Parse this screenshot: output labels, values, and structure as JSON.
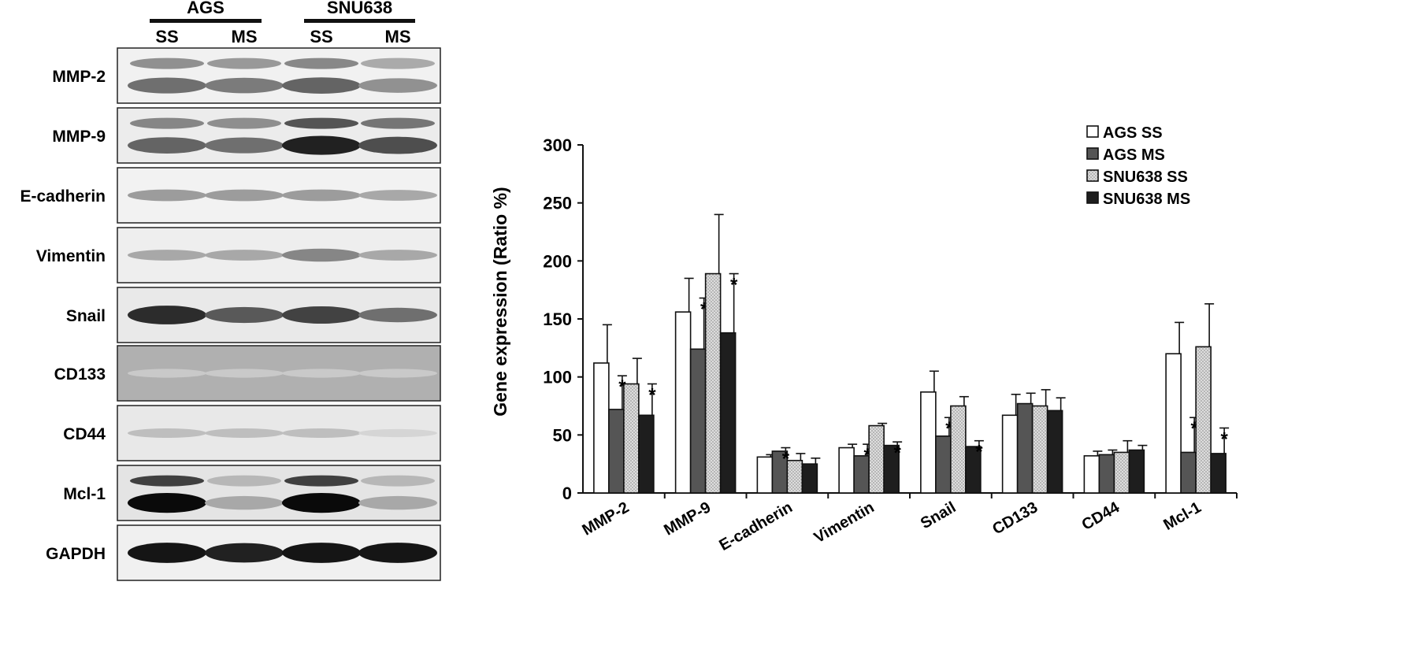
{
  "blot": {
    "groups": [
      {
        "label": "AGS",
        "lanes": [
          "SS",
          "MS"
        ]
      },
      {
        "label": "SNU638",
        "lanes": [
          "SS",
          "MS"
        ]
      }
    ],
    "rows": [
      {
        "label": "MMP-2",
        "bands": [
          0.55,
          0.5,
          0.6,
          0.4
        ],
        "background": "#f1f1f1",
        "double": true
      },
      {
        "label": "MMP-9",
        "bands": [
          0.6,
          0.55,
          0.9,
          0.7
        ],
        "background": "#ececec",
        "double": true
      },
      {
        "label": "E-cadherin",
        "bands": [
          0.35,
          0.35,
          0.35,
          0.3
        ],
        "background": "#f2f2f2",
        "double": false
      },
      {
        "label": "Vimentin",
        "bands": [
          0.3,
          0.3,
          0.45,
          0.3
        ],
        "background": "#eeeeee",
        "double": false
      },
      {
        "label": "Snail",
        "bands": [
          0.85,
          0.65,
          0.75,
          0.55
        ],
        "background": "#e9e9e9",
        "double": false
      },
      {
        "label": "CD133",
        "bands": [
          0.15,
          0.15,
          0.15,
          0.15
        ],
        "background": "#b0b0b0",
        "double": false
      },
      {
        "label": "CD44",
        "bands": [
          0.2,
          0.2,
          0.2,
          0.1
        ],
        "background": "#e8e8e8",
        "double": false
      },
      {
        "label": "Mcl-1",
        "bands": [
          1.0,
          0.3,
          1.0,
          0.3
        ],
        "background": "#e4e4e4",
        "double": true
      },
      {
        "label": "GAPDH",
        "bands": [
          0.95,
          0.9,
          0.95,
          0.95
        ],
        "background": "#f0f0f0",
        "double": false
      }
    ]
  },
  "chart_data": {
    "type": "bar",
    "ylabel": "Gene expression (Ratio %)",
    "xlabel": "",
    "ylim": [
      0,
      300
    ],
    "yticks": [
      0,
      50,
      100,
      150,
      200,
      250,
      300
    ],
    "categories": [
      "MMP-2",
      "MMP-9",
      "E-cadherin",
      "Vimentin",
      "Snail",
      "CD133",
      "CD44",
      "Mcl-1"
    ],
    "series": [
      {
        "name": "AGS SS",
        "color": "#ffffff",
        "values": [
          112,
          156,
          31,
          39,
          87,
          67,
          32,
          120
        ],
        "errors": [
          33,
          29,
          2,
          3,
          18,
          18,
          4,
          27
        ],
        "significant": [
          false,
          false,
          false,
          false,
          false,
          false,
          false,
          false
        ]
      },
      {
        "name": "AGS MS",
        "color": "#555555",
        "values": [
          72,
          124,
          36,
          32,
          49,
          77,
          33,
          35
        ],
        "errors": [
          29,
          44,
          3,
          10,
          16,
          9,
          4,
          30
        ],
        "significant": [
          true,
          true,
          true,
          true,
          true,
          false,
          false,
          true
        ]
      },
      {
        "name": "SNU638 SS",
        "color": "#dddddd",
        "values": [
          94,
          189,
          28,
          58,
          75,
          75,
          35,
          126
        ],
        "errors": [
          22,
          51,
          6,
          2,
          8,
          14,
          10,
          37
        ],
        "significant": [
          false,
          false,
          false,
          false,
          false,
          false,
          false,
          false
        ]
      },
      {
        "name": "SNU638 MS",
        "color": "#1e1e1e",
        "values": [
          67,
          138,
          25,
          41,
          40,
          71,
          37,
          34
        ],
        "errors": [
          27,
          51,
          5,
          3,
          5,
          11,
          4,
          22
        ],
        "significant": [
          true,
          true,
          false,
          true,
          true,
          false,
          false,
          true
        ]
      }
    ],
    "significance_marker": "*",
    "legend_position": "top-right",
    "grid": false
  }
}
